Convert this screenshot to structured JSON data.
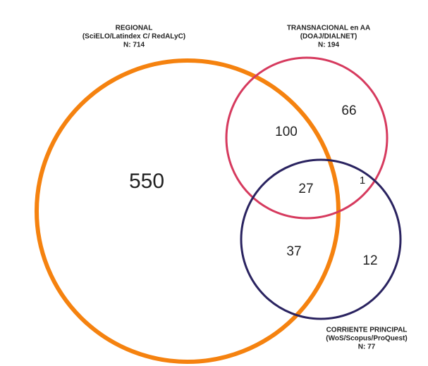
{
  "sets": [
    {
      "title": "REGIONAL",
      "subtitle": "(SciELO/Latindex C/ RedALyC)",
      "n": "N: 714",
      "color": "#f5820f"
    },
    {
      "title": "TRANSNACIONAL en AA",
      "subtitle": "(DOAJ/DIALNET)",
      "n": "N: 194",
      "color": "#d63a5e"
    },
    {
      "title": "CORRIENTE PRINCIPAL",
      "subtitle": "(WoS/Scopus/ProQuest)",
      "n": "N: 77",
      "color": "#2a2360"
    }
  ],
  "regions": [
    {
      "sets": "REGIONAL",
      "count": 550
    },
    {
      "sets": "REGIONAL + TRANSNACIONAL en AA",
      "count": 100
    },
    {
      "sets": "TRANSNACIONAL en AA",
      "count": 66
    },
    {
      "sets": "REGIONAL + TRANSNACIONAL en AA + CORRIENTE PRINCIPAL",
      "count": 27
    },
    {
      "sets": "TRANSNACIONAL en AA + CORRIENTE PRINCIPAL",
      "count": 1
    },
    {
      "sets": "REGIONAL + CORRIENTE PRINCIPAL",
      "count": 37
    },
    {
      "sets": "CORRIENTE PRINCIPAL",
      "count": 12
    }
  ]
}
